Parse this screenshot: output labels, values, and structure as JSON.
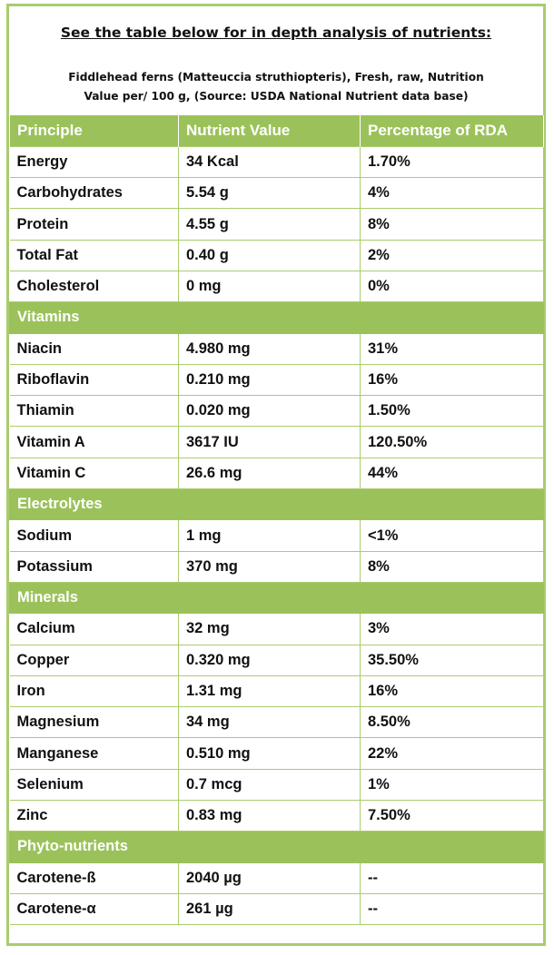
{
  "heading": "See the table below for in depth analysis of nutrients:",
  "source_line1": "Fiddlehead ferns (Matteuccia struthiopteris), Fresh, raw, Nutrition",
  "source_line2": "Value per/ 100 g, (Source: USDA National Nutrient data base)",
  "columns": [
    "Principle",
    "Nutrient Value",
    "Percentage of RDA"
  ],
  "rows": [
    {
      "type": "data",
      "name": "Energy",
      "value": "34 Kcal",
      "rda": "1.70%"
    },
    {
      "type": "data",
      "name": "Carbohydrates",
      "value": "5.54 g",
      "rda": "4%"
    },
    {
      "type": "data",
      "name": "Protein",
      "value": "4.55 g",
      "rda": "8%"
    },
    {
      "type": "data",
      "name": "Total Fat",
      "value": "0.40 g",
      "rda": "2%"
    },
    {
      "type": "data",
      "name": "Cholesterol",
      "value": "0 mg",
      "rda": "0%"
    },
    {
      "type": "section",
      "name": "Vitamins"
    },
    {
      "type": "data",
      "name": "Niacin",
      "value": "4.980 mg",
      "rda": "31%"
    },
    {
      "type": "data",
      "name": "Riboflavin",
      "value": "0.210 mg",
      "rda": "16%"
    },
    {
      "type": "data",
      "name": "Thiamin",
      "value": "0.020 mg",
      "rda": "1.50%"
    },
    {
      "type": "data",
      "name": "Vitamin A",
      "value": "3617 IU",
      "rda": "120.50%"
    },
    {
      "type": "data",
      "name": "Vitamin C",
      "value": "26.6 mg",
      "rda": "44%"
    },
    {
      "type": "section",
      "name": "Electrolytes"
    },
    {
      "type": "data",
      "name": "Sodium",
      "value": "1 mg",
      "rda": "<1%"
    },
    {
      "type": "data",
      "name": "Potassium",
      "value": "370 mg",
      "rda": "8%"
    },
    {
      "type": "section",
      "name": "Minerals"
    },
    {
      "type": "data",
      "name": "Calcium",
      "value": "32 mg",
      "rda": "3%"
    },
    {
      "type": "data",
      "name": "Copper",
      "value": "0.320 mg",
      "rda": "35.50%"
    },
    {
      "type": "data",
      "name": "Iron",
      "value": "1.31 mg",
      "rda": "16%"
    },
    {
      "type": "data",
      "name": "Magnesium",
      "value": "34 mg",
      "rda": "8.50%"
    },
    {
      "type": "data",
      "name": "Manganese",
      "value": "0.510 mg",
      "rda": "22%"
    },
    {
      "type": "data",
      "name": "Selenium",
      "value": "0.7 mcg",
      "rda": "1%"
    },
    {
      "type": "data",
      "name": "Zinc",
      "value": "0.83 mg",
      "rda": "7.50%"
    },
    {
      "type": "section",
      "name": "Phyto-nutrients"
    },
    {
      "type": "data",
      "name": "Carotene-ß",
      "value": "2040 µg",
      "rda": "--"
    },
    {
      "type": "data",
      "name": "Carotene-α",
      "value": "261 µg",
      "rda": "--"
    }
  ],
  "colors": {
    "accent": "#9bc25a",
    "border": "#a9cc6e"
  }
}
